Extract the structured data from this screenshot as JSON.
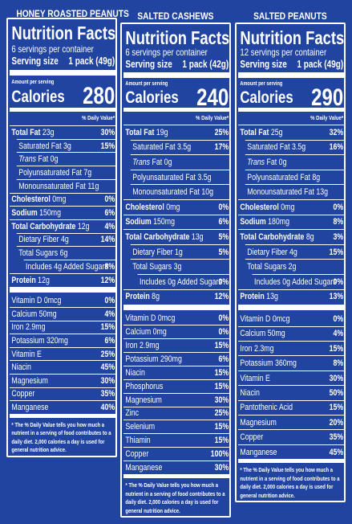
{
  "panels": [
    {
      "product": "HONEY ROASTED PEANUTS",
      "title": "Nutrition Facts",
      "servings": "6 servings per container",
      "serving_size_label": "Serving size",
      "serving_size": "1 pack (49g)",
      "amount_per_serving": "Amount per serving",
      "calories_label": "Calories",
      "calories": 280,
      "dv_header": "% Daily Value*",
      "nutrients": [
        {
          "name": "Total Fat",
          "amount": "23g",
          "dv": "30%",
          "bold": true,
          "indent": 0
        },
        {
          "name": "Saturated Fat",
          "amount": "3g",
          "dv": "15%",
          "indent": 1
        },
        {
          "name_italic": "Trans",
          "name": "Fat",
          "amount": "0g",
          "indent": 1
        },
        {
          "name": "Polyunsaturated Fat",
          "amount": "7g",
          "indent": 1
        },
        {
          "name": "Monounsaturated Fat",
          "amount": "11g",
          "indent": 1
        },
        {
          "name": "Cholesterol",
          "amount": "0mg",
          "dv": "0%",
          "bold": true,
          "indent": 0
        },
        {
          "name": "Sodium",
          "amount": "150mg",
          "dv": "6%",
          "bold": true,
          "indent": 0
        },
        {
          "name": "Total Carbohydrate",
          "amount": "12g",
          "dv": "4%",
          "bold": true,
          "indent": 0
        },
        {
          "name": "Dietary Fiber",
          "amount": "4g",
          "dv": "14%",
          "indent": 1
        },
        {
          "name": "Total Sugars",
          "amount": "6g",
          "indent": 1
        },
        {
          "name": "Includes 4g Added Sugars",
          "dv": "8%",
          "indent": 2
        },
        {
          "name": "Protein",
          "amount": "12g",
          "dv": "12%",
          "bold": true,
          "indent": 0
        }
      ],
      "vitamins": [
        {
          "name": "Vitamin D",
          "amount": "0mcg",
          "dv": "0%"
        },
        {
          "name": "Calcium",
          "amount": "50mg",
          "dv": "4%"
        },
        {
          "name": "Iron",
          "amount": "2.9mg",
          "dv": "15%"
        },
        {
          "name": "Potassium",
          "amount": "320mg",
          "dv": "6%"
        },
        {
          "name": "Vitamin E",
          "dv": "25%"
        },
        {
          "name": "Niacin",
          "dv": "45%"
        },
        {
          "name": "Magnesium",
          "dv": "30%"
        },
        {
          "name": "Copper",
          "dv": "35%"
        },
        {
          "name": "Manganese",
          "dv": "40%"
        }
      ],
      "footnote": "* The % Daily Value tells you how much a nutrient in a serving of food contributes to a daily diet. 2,000 calories a day is used for general nutrition advice."
    },
    {
      "product": "SALTED CASHEWS",
      "title": "Nutrition Facts",
      "servings": "6 servings per container",
      "serving_size_label": "Serving size",
      "serving_size": "1 pack (42g)",
      "amount_per_serving": "Amount per serving",
      "calories_label": "Calories",
      "calories": 240,
      "dv_header": "% Daily Value*",
      "nutrients": [
        {
          "name": "Total Fat",
          "amount": "19g",
          "dv": "25%",
          "bold": true,
          "indent": 0
        },
        {
          "name": "Saturated Fat",
          "amount": "3.5g",
          "dv": "17%",
          "indent": 1
        },
        {
          "name_italic": "Trans",
          "name": "Fat",
          "amount": "0g",
          "indent": 1
        },
        {
          "name": "Polyunsaturated Fat",
          "amount": "3.5g",
          "indent": 1
        },
        {
          "name": "Monounsaturated Fat",
          "amount": "10g",
          "indent": 1
        },
        {
          "name": "Cholesterol",
          "amount": "0mg",
          "dv": "0%",
          "bold": true,
          "indent": 0
        },
        {
          "name": "Sodium",
          "amount": "150mg",
          "dv": "6%",
          "bold": true,
          "indent": 0
        },
        {
          "name": "Total Carbohydrate",
          "amount": "13g",
          "dv": "5%",
          "bold": true,
          "indent": 0
        },
        {
          "name": "Dietary Fiber",
          "amount": "1g",
          "dv": "5%",
          "indent": 1
        },
        {
          "name": "Total Sugars",
          "amount": "3g",
          "indent": 1
        },
        {
          "name": "Includes 0g Added Sugars",
          "dv": "0%",
          "indent": 2
        },
        {
          "name": "Protein",
          "amount": "8g",
          "dv": "12%",
          "bold": true,
          "indent": 0
        }
      ],
      "vitamins": [
        {
          "name": "Vitamin D",
          "amount": "0mcg",
          "dv": "0%"
        },
        {
          "name": "Calcium",
          "amount": "0mg",
          "dv": "0%"
        },
        {
          "name": "Iron",
          "amount": "2.9mg",
          "dv": "15%"
        },
        {
          "name": "Potassium",
          "amount": "290mg",
          "dv": "6%"
        },
        {
          "name": "Niacin",
          "dv": "15%"
        },
        {
          "name": "Phosphorus",
          "dv": "15%"
        },
        {
          "name": "Magnesium",
          "dv": "30%"
        },
        {
          "name": "Zinc",
          "dv": "25%"
        },
        {
          "name": "Selenium",
          "dv": "15%"
        },
        {
          "name": "Thiamin",
          "dv": "15%"
        },
        {
          "name": "Copper",
          "dv": "100%"
        },
        {
          "name": "Manganese",
          "dv": "30%"
        }
      ],
      "footnote": "* The % Daily Value tells you how much a nutrient in a serving of food contributes to a daily diet. 2,000 calories a day is used for general nutrition advice."
    },
    {
      "product": "SALTED PEANUTS",
      "title": "Nutrition Facts",
      "servings": "12 servings per container",
      "serving_size_label": "Serving size",
      "serving_size": "1 pack (49g)",
      "amount_per_serving": "Amount per serving",
      "calories_label": "Calories",
      "calories": 290,
      "dv_header": "% Daily Value*",
      "nutrients": [
        {
          "name": "Total Fat",
          "amount": "25g",
          "dv": "32%",
          "bold": true,
          "indent": 0
        },
        {
          "name": "Saturated Fat",
          "amount": "3.5g",
          "dv": "16%",
          "indent": 1
        },
        {
          "name_italic": "Trans",
          "name": "Fat",
          "amount": "0g",
          "indent": 1
        },
        {
          "name": "Polyunsaturated Fat",
          "amount": "8g",
          "indent": 1
        },
        {
          "name": "Monounsaturated Fat",
          "amount": "13g",
          "indent": 1
        },
        {
          "name": "Cholesterol",
          "amount": "0mg",
          "dv": "0%",
          "bold": true,
          "indent": 0
        },
        {
          "name": "Sodium",
          "amount": "180mg",
          "dv": "8%",
          "bold": true,
          "indent": 0
        },
        {
          "name": "Total Carbohydrate",
          "amount": "8g",
          "dv": "3%",
          "bold": true,
          "indent": 0
        },
        {
          "name": "Dietary Fiber",
          "amount": "4g",
          "dv": "15%",
          "indent": 1
        },
        {
          "name": "Total Sugars",
          "amount": "2g",
          "indent": 1
        },
        {
          "name": "Includes 0g Added Sugars",
          "dv": "0%",
          "indent": 2
        },
        {
          "name": "Protein",
          "amount": "13g",
          "dv": "13%",
          "bold": true,
          "indent": 0
        }
      ],
      "vitamins": [
        {
          "name": "Vitamin D",
          "amount": "0mcg",
          "dv": "0%"
        },
        {
          "name": "Calcium",
          "amount": "50mg",
          "dv": "4%"
        },
        {
          "name": "Iron",
          "amount": "2.3mg",
          "dv": "15%"
        },
        {
          "name": "Potassium",
          "amount": "360mg",
          "dv": "8%"
        },
        {
          "name": "Vitamin E",
          "dv": "30%"
        },
        {
          "name": "Niacin",
          "dv": "50%"
        },
        {
          "name": "Pantothenic Acid",
          "dv": "15%"
        },
        {
          "name": "Magnesium",
          "dv": "20%"
        },
        {
          "name": "Copper",
          "dv": "35%"
        },
        {
          "name": "Manganese",
          "dv": "45%"
        }
      ],
      "footnote": "* The % Daily Value tells you how much a nutrient in a serving of food contributes to a daily diet. 2,000 calories a day is used for general nutrition advice."
    }
  ]
}
